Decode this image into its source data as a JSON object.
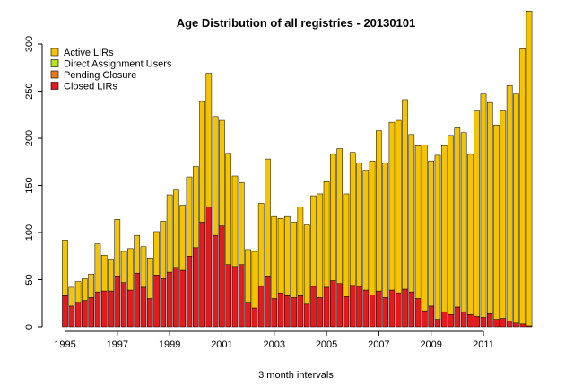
{
  "chart_data": {
    "type": "bar",
    "stacked": true,
    "title": "Age Distribution of all registries -  20130101",
    "xlabel": "3 month intervals",
    "ylabel": "",
    "ylim": [
      0,
      340
    ],
    "yticks": [
      0,
      50,
      100,
      150,
      200,
      250,
      300
    ],
    "xticks": [
      "1995",
      "1997",
      "1999",
      "2001",
      "2003",
      "2005",
      "2007",
      "2009",
      "2011"
    ],
    "legend_position": "top-left",
    "grid": false,
    "legend": [
      {
        "name": "Active LIRs",
        "color": "#f5c400"
      },
      {
        "name": "Direct Assignment Users",
        "color": "#b5e61d"
      },
      {
        "name": "Pending Closure",
        "color": "#f07a10"
      },
      {
        "name": "Closed LIRs",
        "color": "#e41a1c"
      }
    ],
    "x_start": 1995.0,
    "x_step": 0.25,
    "series": [
      {
        "name": "Closed LIRs",
        "color": "#e41a1c",
        "values": [
          33,
          22,
          26,
          28,
          31,
          37,
          38,
          38,
          54,
          47,
          39,
          57,
          42,
          30,
          55,
          51,
          58,
          63,
          60,
          75,
          84,
          111,
          127,
          97,
          107,
          66,
          64,
          66,
          26,
          20,
          43,
          54,
          30,
          36,
          33,
          31,
          33,
          24,
          43,
          31,
          42,
          49,
          46,
          32,
          44,
          43,
          39,
          34,
          38,
          31,
          39,
          36,
          40,
          37,
          30,
          17,
          22,
          8,
          16,
          13,
          21,
          16,
          13,
          11,
          10,
          14,
          8,
          9,
          6,
          4,
          3,
          1
        ]
      },
      {
        "name": "Active LIRs",
        "color": "#f5c400",
        "values": [
          59,
          20,
          22,
          23,
          25,
          51,
          38,
          33,
          60,
          33,
          44,
          40,
          43,
          43,
          46,
          61,
          82,
          82,
          69,
          84,
          86,
          128,
          142,
          126,
          112,
          118,
          96,
          87,
          56,
          60,
          88,
          124,
          87,
          79,
          84,
          80,
          94,
          84,
          96,
          110,
          112,
          134,
          143,
          109,
          141,
          131,
          127,
          142,
          170,
          143,
          178,
          183,
          201,
          167,
          162,
          176,
          154,
          174,
          176,
          190,
          191,
          190,
          170,
          218,
          237,
          224,
          206,
          220,
          250,
          243,
          292,
          334
        ]
      },
      {
        "name": "Direct Assignment Users",
        "color": "#b5e61d",
        "values": [
          0,
          0,
          0,
          0,
          0,
          0,
          0,
          0,
          0,
          0,
          0,
          0,
          0,
          0,
          0,
          0,
          0,
          0,
          0,
          0,
          0,
          0,
          0,
          0,
          0,
          0,
          0,
          0,
          0,
          0,
          0,
          0,
          0,
          0,
          0,
          0,
          0,
          0,
          0,
          0,
          0,
          0,
          0,
          0,
          0,
          0,
          0,
          0,
          0,
          0,
          0,
          0,
          0,
          0,
          0,
          0,
          0,
          0,
          0,
          0,
          0,
          0,
          0,
          0,
          0,
          0,
          0,
          0,
          0,
          0,
          0,
          0
        ]
      },
      {
        "name": "Pending Closure",
        "color": "#f07a10",
        "values": [
          0,
          0,
          0,
          0,
          0,
          0,
          0,
          0,
          0,
          0,
          0,
          0,
          0,
          0,
          0,
          0,
          0,
          0,
          0,
          0,
          0,
          0,
          0,
          0,
          0,
          0,
          0,
          0,
          0,
          0,
          0,
          0,
          0,
          0,
          0,
          0,
          0,
          0,
          0,
          0,
          0,
          0,
          0,
          0,
          0,
          0,
          0,
          0,
          0,
          0,
          0,
          0,
          0,
          0,
          0,
          0,
          0,
          0,
          0,
          0,
          0,
          0,
          0,
          0,
          0,
          0,
          0,
          0,
          0,
          0,
          0,
          0
        ]
      }
    ]
  }
}
